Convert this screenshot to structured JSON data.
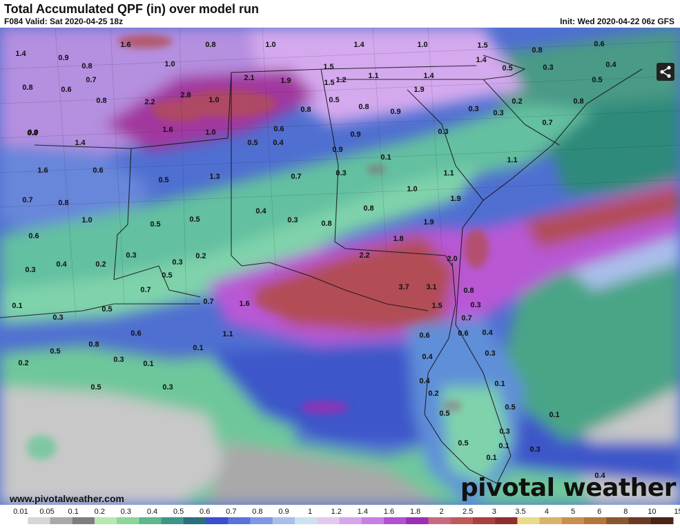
{
  "header": {
    "title": "Total Accumulated QPF (in) over model run",
    "valid": "F084 Valid: Sat 2020-04-25 18z",
    "init": "Init: Wed 2020-04-22 06z GFS"
  },
  "footer": {
    "credit": "www.pivotalweather.com",
    "brand": "pivotal weather"
  },
  "icons": {
    "share": "share-icon",
    "logo_gear": "gear-icon"
  },
  "legend": {
    "labels": [
      "0.01",
      "0.05",
      "0.1",
      "0.2",
      "0.3",
      "0.4",
      "0.5",
      "0.6",
      "0.7",
      "0.8",
      "0.9",
      "1",
      "1.2",
      "1.4",
      "1.6",
      "1.8",
      "2",
      "2.5",
      "3",
      "3.5",
      "4",
      "5",
      "6",
      "8",
      "10",
      "15"
    ],
    "colors": [
      "#ffffff",
      "#d6d6d6",
      "#a9a9a9",
      "#7e7e7e",
      "#b5e9b1",
      "#8fd59a",
      "#5fb78b",
      "#3e9687",
      "#2b6f7e",
      "#3a4fd0",
      "#5b73d9",
      "#7f98e3",
      "#a9bfea",
      "#cfe1f1",
      "#e3c9ef",
      "#d6a6ea",
      "#c97ee3",
      "#b050d3",
      "#9b2fb3",
      "#c86a7d",
      "#bf5a5a",
      "#a84040",
      "#8f2e2e",
      "#eadb8b",
      "#d9b36a",
      "#c79050",
      "#b2763c",
      "#8a5630",
      "#6b3a24",
      "#4a2416"
    ]
  },
  "map": {
    "labels": [
      "1.6",
      "0.8",
      "1.0",
      "1.4",
      "1.0",
      "1.5",
      "0.8",
      "0.6",
      "1.4",
      "0.9",
      "0.8",
      "1.0",
      "1.5",
      "1.4",
      "0.5",
      "0.3",
      "0.4",
      "0.5",
      "0.8",
      "0.7",
      "2.1",
      "1.9",
      "1.5",
      "1.2",
      "1.1",
      "1.4",
      "0.8",
      "0.6",
      "2.2",
      "2.8",
      "1.0",
      "0.5",
      "0.8",
      "1.9",
      "0.8",
      "0.9",
      "0.8",
      "0.8",
      "0.3",
      "0.3",
      "0.2",
      "0.4",
      "0.9",
      "1.4",
      "1.6",
      "1.0",
      "0.6",
      "0.9",
      "0.7",
      "0.5",
      "0.3",
      "0.6",
      "1.3",
      "0.7",
      "0.3",
      "0.1",
      "1.1",
      "1.1",
      "1.6",
      "0.5",
      "0.9",
      "0.7",
      "0.8",
      "1.0",
      "1.9",
      "0.4",
      "0.3",
      "0.8",
      "1.0",
      "0.5",
      "0.5",
      "0.8",
      "1.9",
      "0.6",
      "0.4",
      "0.2",
      "0.3",
      "0.3",
      "2.2",
      "1.8",
      "2.0",
      "0.3",
      "0.5",
      "0.2",
      "3.7",
      "3.1",
      "0.8",
      "0.7",
      "0.1",
      "0.7",
      "1.6",
      "1.5",
      "0.3",
      "0.5",
      "0.3",
      "0.7",
      "0.6",
      "0.4",
      "0.6",
      "0.6",
      "0.3",
      "1.1",
      "0.1",
      "0.5",
      "0.3",
      "0.8",
      "0.4",
      "0.1",
      "0.2",
      "0.5",
      "0.4",
      "0.2",
      "0.1",
      "0.3",
      "0.5",
      "0.5",
      "0.1",
      "0.3",
      "0.5",
      "0.3",
      "0.1",
      "0.1",
      "0.4"
    ]
  }
}
